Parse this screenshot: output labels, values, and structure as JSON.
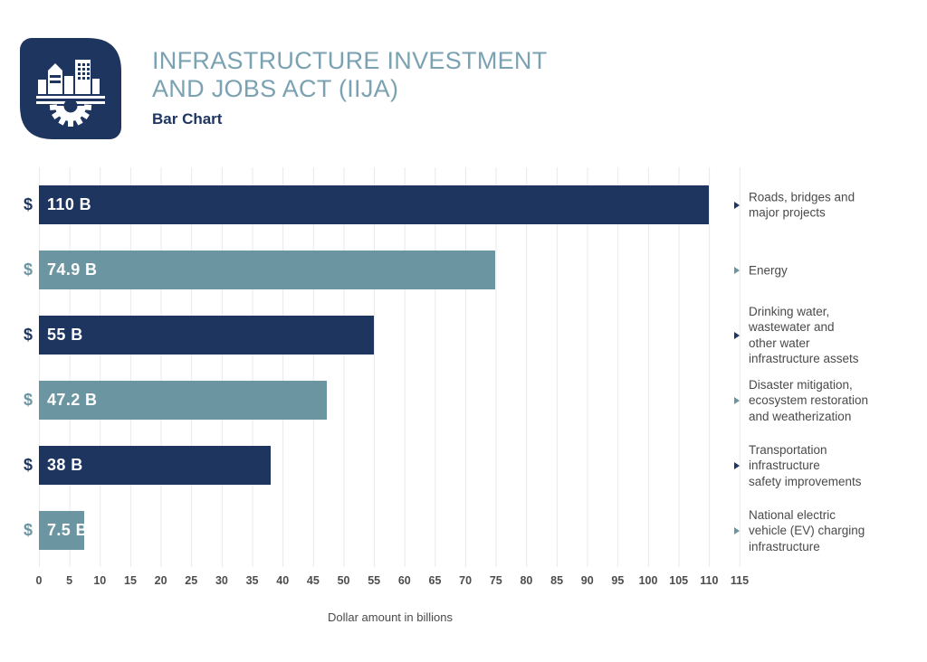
{
  "header": {
    "title_line1": "INFRASTRUCTURE INVESTMENT",
    "title_line2": "AND JOBS ACT (IIJA)",
    "subtitle": "Bar Chart",
    "logo_icon": "city-buildings-gear-icon"
  },
  "colors": {
    "navy": "#1e3560",
    "teal": "#6a95a1",
    "title_text": "#7ba2b2",
    "label_text": "#4a4a4a",
    "tick_text": "#4d4d4d",
    "gridline": "#e9e9e9",
    "background": "#ffffff"
  },
  "chart_data": {
    "type": "bar",
    "orientation": "horizontal",
    "title": "Infrastructure Investment and Jobs Act (IIJA)",
    "subtitle": "Bar Chart",
    "xlabel": "Dollar amount in billions",
    "xlim": [
      0,
      115
    ],
    "xticks": [
      0,
      5,
      10,
      15,
      20,
      25,
      30,
      35,
      40,
      45,
      50,
      55,
      60,
      65,
      70,
      75,
      80,
      85,
      90,
      95,
      100,
      105,
      110,
      115
    ],
    "grid": true,
    "currency_symbol": "$",
    "bars": [
      {
        "label": "Roads, bridges and\nmajor projects",
        "value": 110,
        "value_label": "110 B",
        "color": "#1e3560"
      },
      {
        "label": "Energy",
        "value": 74.9,
        "value_label": "74.9 B",
        "color": "#6a95a1"
      },
      {
        "label": "Drinking water,\nwastewater and\nother water\ninfrastructure assets",
        "value": 55,
        "value_label": "55 B",
        "color": "#1e3560"
      },
      {
        "label": "Disaster mitigation,\necosystem restoration\nand weatherization",
        "value": 47.2,
        "value_label": "47.2 B",
        "color": "#6a95a1"
      },
      {
        "label": "Transportation\ninfrastructure\nsafety improvements",
        "value": 38,
        "value_label": "38 B",
        "color": "#1e3560"
      },
      {
        "label": "National electric\nvehicle (EV) charging\ninfrastructure",
        "value": 7.5,
        "value_label": "7.5 B",
        "color": "#6a95a1"
      }
    ]
  }
}
